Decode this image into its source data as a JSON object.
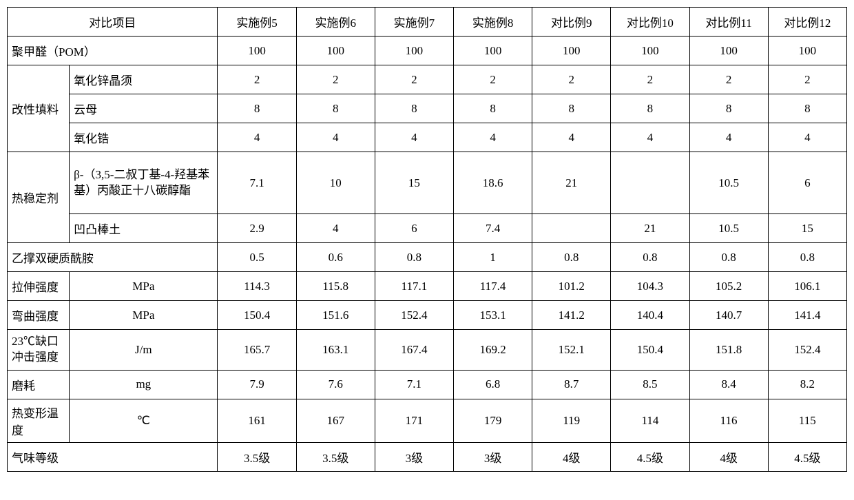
{
  "table": {
    "border_color": "#000000",
    "background_color": "#ffffff",
    "text_color": "#000000",
    "font_size": 17,
    "header": {
      "row_label": "对比项目",
      "columns": [
        "实施例5",
        "实施例6",
        "实施例7",
        "实施例8",
        "对比例9",
        "对比例10",
        "对比例11",
        "对比例12"
      ]
    },
    "rows": [
      {
        "label_span": "聚甲醛（POM）",
        "values": [
          "100",
          "100",
          "100",
          "100",
          "100",
          "100",
          "100",
          "100"
        ]
      },
      {
        "group_label": "改性填料",
        "sub_label": "氧化锌晶须",
        "values": [
          "2",
          "2",
          "2",
          "2",
          "2",
          "2",
          "2",
          "2"
        ]
      },
      {
        "sub_label": "云母",
        "values": [
          "8",
          "8",
          "8",
          "8",
          "8",
          "8",
          "8",
          "8"
        ]
      },
      {
        "sub_label": "氧化锆",
        "values": [
          "4",
          "4",
          "4",
          "4",
          "4",
          "4",
          "4",
          "4"
        ]
      },
      {
        "group_label": "热稳定剂",
        "sub_label": "β-（3,5-二叔丁基-4-羟基苯基）丙酸正十八碳醇酯",
        "values": [
          "7.1",
          "10",
          "15",
          "18.6",
          "21",
          "",
          "10.5",
          "6"
        ]
      },
      {
        "sub_label": "凹凸棒土",
        "values": [
          "2.9",
          "4",
          "6",
          "7.4",
          "",
          "21",
          "10.5",
          "15"
        ]
      },
      {
        "label_span": "乙撑双硬质酰胺",
        "values": [
          "0.5",
          "0.6",
          "0.8",
          "1",
          "0.8",
          "0.8",
          "0.8",
          "0.8"
        ]
      },
      {
        "label": "拉伸强度",
        "unit": "MPa",
        "values": [
          "114.3",
          "115.8",
          "117.1",
          "117.4",
          "101.2",
          "104.3",
          "105.2",
          "106.1"
        ]
      },
      {
        "label": "弯曲强度",
        "unit": "MPa",
        "values": [
          "150.4",
          "151.6",
          "152.4",
          "153.1",
          "141.2",
          "140.4",
          "140.7",
          "141.4"
        ]
      },
      {
        "label": "23℃缺口冲击强度",
        "unit": "J/m",
        "values": [
          "165.7",
          "163.1",
          "167.4",
          "169.2",
          "152.1",
          "150.4",
          "151.8",
          "152.4"
        ]
      },
      {
        "label": "磨耗",
        "unit": "mg",
        "values": [
          "7.9",
          "7.6",
          "7.1",
          "6.8",
          "8.7",
          "8.5",
          "8.4",
          "8.2"
        ]
      },
      {
        "label": "热变形温度",
        "unit": "℃",
        "values": [
          "161",
          "167",
          "171",
          "179",
          "119",
          "114",
          "116",
          "115"
        ]
      },
      {
        "label_span": "气味等级",
        "values": [
          "3.5级",
          "3.5级",
          "3级",
          "3级",
          "4级",
          "4.5级",
          "4级",
          "4.5级"
        ]
      }
    ]
  }
}
